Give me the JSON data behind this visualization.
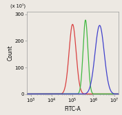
{
  "xlabel": "FITC-A",
  "ylabel": "Count",
  "xlim_log": [
    2.8,
    7.2
  ],
  "ylim": [
    0,
    310
  ],
  "yticks": [
    0,
    100,
    200,
    300
  ],
  "ytick_labels": [
    "0",
    "100",
    "200",
    "300"
  ],
  "xticks_log": [
    3,
    4,
    5,
    6,
    7
  ],
  "y_scale_label": "(x 10¹)",
  "background_color": "#ede9e3",
  "plot_bg_color": "#ede9e3",
  "red_peak_log": 5.0,
  "red_sigma": 0.17,
  "red_height": 262,
  "green_peak_log": 5.62,
  "green_sigma": 0.115,
  "green_height": 278,
  "blue_peak_log": 6.3,
  "blue_sigma": 0.22,
  "blue_height": 258,
  "red_color": "#d94040",
  "green_color": "#40b840",
  "blue_color": "#4040cc",
  "line_width": 0.9,
  "axis_fontsize": 5.5,
  "tick_fontsize": 5.0,
  "scale_label_fontsize": 4.8,
  "spine_color": "#999999"
}
